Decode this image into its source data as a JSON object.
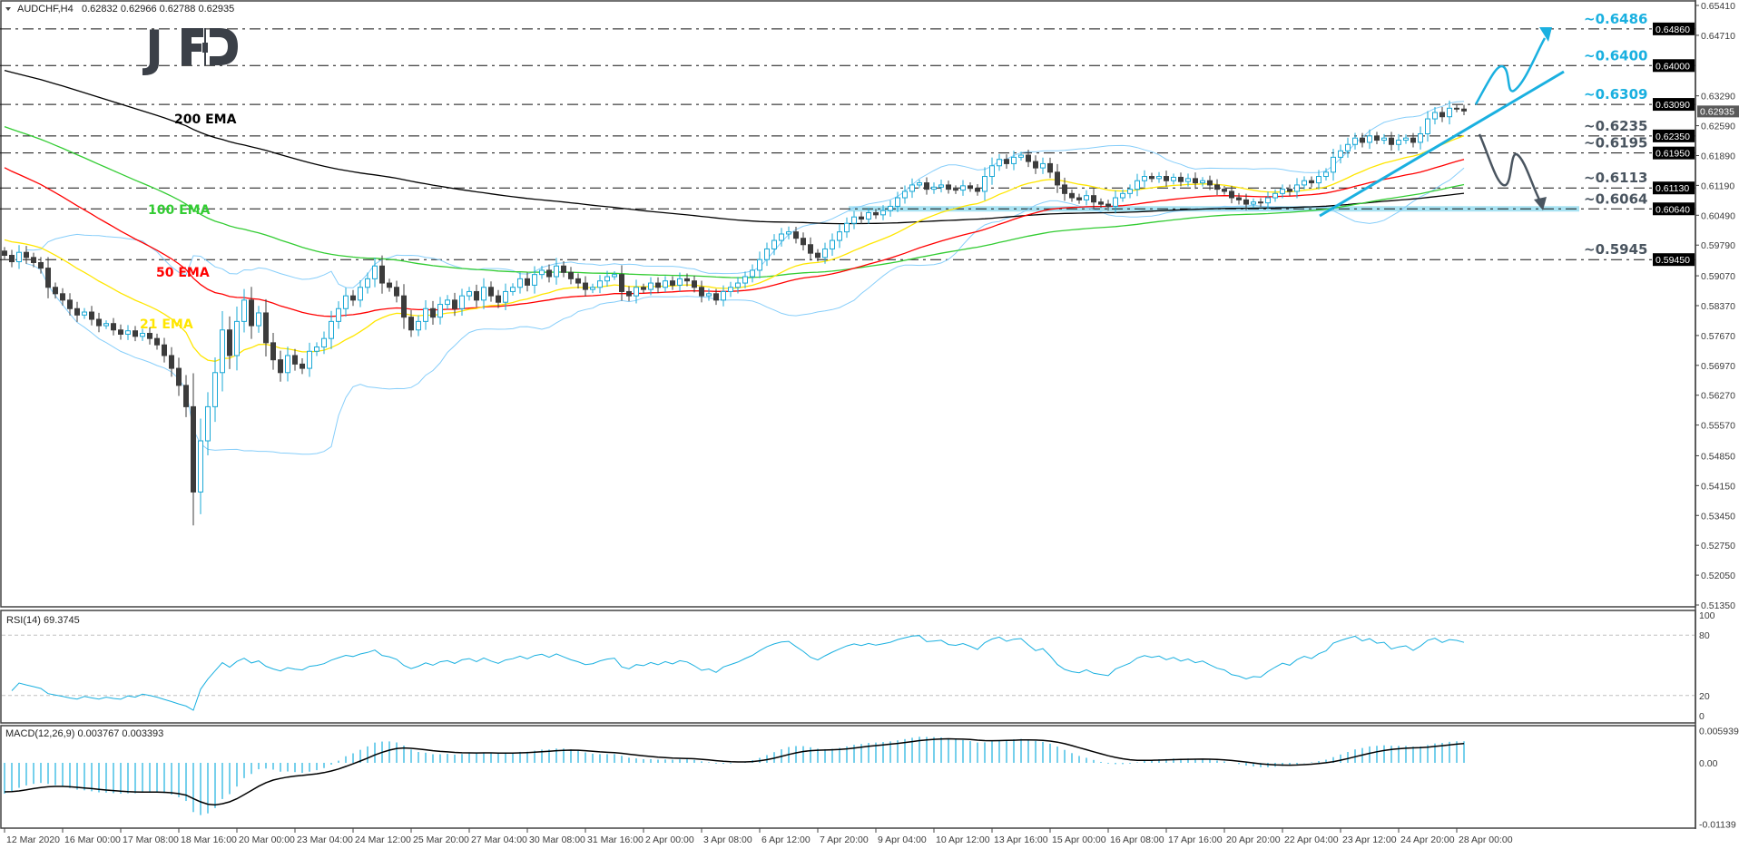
{
  "header": {
    "symbol": "AUDCHF,H4",
    "ohlc": "0.62832 0.62966 0.62788 0.62935"
  },
  "logo": {
    "text": "JFD",
    "color": "#3b4048"
  },
  "colors": {
    "bull": "#1aa8d6",
    "bear": "#3c3c3c",
    "blue": "#1ab0e0",
    "gray": "#4a5560",
    "bands": "#87cefa",
    "zone": "#a8e2f2"
  },
  "chart_data": [
    {
      "type": "candlestick",
      "title": "AUDCHF,H4",
      "ylim": [
        0.5135,
        0.6541
      ],
      "y_ticks": [
        "0.65410",
        "0.64710",
        "0.63290",
        "0.62590",
        "0.61890",
        "0.61190",
        "0.60490",
        "0.59790",
        "0.59070",
        "0.58370",
        "0.57670",
        "0.56970",
        "0.56270",
        "0.55570",
        "0.54850",
        "0.54150",
        "0.53450",
        "0.52750",
        "0.52050",
        "0.51350"
      ],
      "x_tick_labels": [
        "12 Mar 2020",
        "16 Mar 00:00",
        "17 Mar 08:00",
        "18 Mar 16:00",
        "20 Mar 00:00",
        "23 Mar 04:00",
        "24 Mar 12:00",
        "25 Mar 20:00",
        "27 Mar 04:00",
        "30 Mar 08:00",
        "31 Mar 16:00",
        "2 Apr 00:00",
        "3 Apr 08:00",
        "6 Apr 12:00",
        "7 Apr 20:00",
        "9 Apr 04:00",
        "10 Apr 12:00",
        "13 Apr 16:00",
        "15 Apr 00:00",
        "16 Apr 08:00",
        "17 Apr 16:00",
        "20 Apr 20:00",
        "22 Apr 04:00",
        "23 Apr 12:00",
        "24 Apr 20:00",
        "28 Apr 00:00"
      ],
      "closes": [
        0.5955,
        0.594,
        0.5962,
        0.595,
        0.5938,
        0.5925,
        0.588,
        0.5865,
        0.585,
        0.583,
        0.5815,
        0.5822,
        0.5805,
        0.579,
        0.5795,
        0.578,
        0.577,
        0.5778,
        0.5765,
        0.5772,
        0.576,
        0.5745,
        0.572,
        0.569,
        0.565,
        0.56,
        0.54,
        0.552,
        0.56,
        0.568,
        0.578,
        0.572,
        0.58,
        0.585,
        0.579,
        0.582,
        0.575,
        0.571,
        0.568,
        0.572,
        0.57,
        0.569,
        0.573,
        0.574,
        0.576,
        0.58,
        0.583,
        0.586,
        0.585,
        0.588,
        0.59,
        0.593,
        0.589,
        0.588,
        0.586,
        0.581,
        0.578,
        0.58,
        0.583,
        0.581,
        0.584,
        0.585,
        0.583,
        0.586,
        0.587,
        0.585,
        0.588,
        0.586,
        0.5845,
        0.587,
        0.588,
        0.59,
        0.5885,
        0.591,
        0.592,
        0.5905,
        0.593,
        0.5915,
        0.59,
        0.589,
        0.5875,
        0.588,
        0.5895,
        0.5905,
        0.591,
        0.587,
        0.586,
        0.588,
        0.5875,
        0.589,
        0.588,
        0.5895,
        0.5885,
        0.59,
        0.5895,
        0.588,
        0.586,
        0.5865,
        0.585,
        0.587,
        0.588,
        0.589,
        0.5905,
        0.592,
        0.5945,
        0.597,
        0.599,
        0.6005,
        0.601,
        0.5995,
        0.598,
        0.596,
        0.595,
        0.597,
        0.599,
        0.601,
        0.603,
        0.6045,
        0.604,
        0.6055,
        0.605,
        0.606,
        0.607,
        0.609,
        0.6105,
        0.612,
        0.6125,
        0.611,
        0.6115,
        0.612,
        0.611,
        0.6108,
        0.6118,
        0.6112,
        0.6105,
        0.614,
        0.6165,
        0.618,
        0.617,
        0.6185,
        0.619,
        0.6175,
        0.616,
        0.617,
        0.615,
        0.612,
        0.61,
        0.609,
        0.6085,
        0.6095,
        0.608,
        0.6075,
        0.607,
        0.609,
        0.61,
        0.611,
        0.613,
        0.614,
        0.6135,
        0.614,
        0.613,
        0.6138,
        0.6128,
        0.6135,
        0.6125,
        0.613,
        0.612,
        0.611,
        0.6105,
        0.609,
        0.6085,
        0.6075,
        0.608,
        0.6078,
        0.609,
        0.61,
        0.611,
        0.6105,
        0.612,
        0.613,
        0.6125,
        0.614,
        0.615,
        0.6185,
        0.62,
        0.6215,
        0.623,
        0.622,
        0.6235,
        0.6225,
        0.623,
        0.6215,
        0.6225,
        0.623,
        0.622,
        0.624,
        0.6275,
        0.629,
        0.628,
        0.63,
        0.6298,
        0.62935
      ],
      "first_open": 0.5965,
      "current_price": "0.62935",
      "moving_averages": [
        {
          "label": "200 EMA",
          "period": 200,
          "color": "#000000",
          "start": 0.6393
        },
        {
          "label": "100 EMA",
          "period": 100,
          "color": "#33cc33",
          "start": 0.6263
        },
        {
          "label": "50 EMA",
          "period": 50,
          "color": "#ff0000",
          "start": 0.6169
        },
        {
          "label": "21 EMA",
          "period": 21,
          "color": "#ffe600",
          "start": 0.5995
        }
      ],
      "bollinger": {
        "period": 20,
        "deviations": 2
      },
      "levels": [
        {
          "label": "~0.6486",
          "value": 0.6486,
          "axis_label": "0.64860",
          "tone": "blue"
        },
        {
          "label": "~0.6400",
          "value": 0.64,
          "axis_label": "0.64000",
          "tone": "blue"
        },
        {
          "label": "~0.6309",
          "value": 0.6309,
          "axis_label": "0.63090",
          "tone": "blue"
        },
        {
          "label": "~0.6235",
          "value": 0.6235,
          "axis_label": "0.62350",
          "tone": "gray"
        },
        {
          "label": "~0.6195",
          "value": 0.6195,
          "axis_label": "0.61950",
          "tone": "gray"
        },
        {
          "label": "~0.6113",
          "value": 0.6113,
          "axis_label": "0.61130",
          "tone": "gray"
        },
        {
          "label": "~0.6064",
          "value": 0.6064,
          "axis_label": "0.60640",
          "tone": "gray"
        },
        {
          "label": "~0.5945",
          "value": 0.5945,
          "axis_label": "0.59450",
          "tone": "gray"
        }
      ]
    },
    {
      "type": "line",
      "title": "RSI(14) 69.3745",
      "period": 14,
      "ylim": [
        0,
        100
      ],
      "y_ticks": [
        "100",
        "80",
        "20",
        "0"
      ],
      "levels": [
        80,
        20
      ]
    },
    {
      "type": "bar",
      "title": "MACD(12,26,9) 0.003767 0.003393",
      "ylim": [
        -0.01139,
        0.005939
      ],
      "y_ticks": [
        "0.005939",
        "0.00",
        "-0.01139"
      ]
    }
  ]
}
